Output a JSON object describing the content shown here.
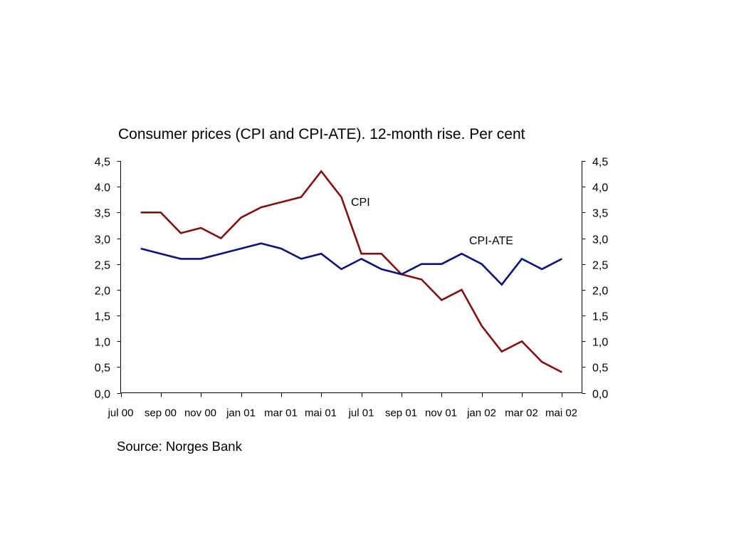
{
  "chart_data": {
    "type": "line",
    "title": "Consumer prices (CPI and CPI-ATE). 12-month rise. Per cent",
    "xlim": [
      "2000-07",
      "2002-06"
    ],
    "ylim": [
      0,
      4.5
    ],
    "grid": false,
    "x_ticks": [
      {
        "x": "2000-07",
        "label": "jul 00"
      },
      {
        "x": "2000-09",
        "label": "sep 00"
      },
      {
        "x": "2000-11",
        "label": "nov 00"
      },
      {
        "x": "2001-01",
        "label": "jan 01"
      },
      {
        "x": "2001-03",
        "label": "mar 01"
      },
      {
        "x": "2001-05",
        "label": "mai 01"
      },
      {
        "x": "2001-07",
        "label": "jul 01"
      },
      {
        "x": "2001-09",
        "label": "sep 01"
      },
      {
        "x": "2001-11",
        "label": "nov 01"
      },
      {
        "x": "2002-01",
        "label": "jan 02"
      },
      {
        "x": "2002-03",
        "label": "mar 02"
      },
      {
        "x": "2002-05",
        "label": "mai 02"
      }
    ],
    "y_ticks_left": [
      {
        "y": 0,
        "label": "0,0"
      },
      {
        "y": 0.5,
        "label": "0,5"
      },
      {
        "y": 1,
        "label": "1,0"
      },
      {
        "y": 1.5,
        "label": "1,5"
      },
      {
        "y": 2,
        "label": "2,0"
      },
      {
        "y": 2.5,
        "label": "2,5"
      },
      {
        "y": 3,
        "label": "3,0"
      },
      {
        "y": 3.5,
        "label": "3,5"
      },
      {
        "y": 4,
        "label": "4.0"
      },
      {
        "y": 4.5,
        "label": "4,5"
      }
    ],
    "y_ticks_right": [
      {
        "y": 0,
        "label": "0,0"
      },
      {
        "y": 0.5,
        "label": "0,5"
      },
      {
        "y": 1,
        "label": "1,0"
      },
      {
        "y": 1.5,
        "label": "1,5"
      },
      {
        "y": 2,
        "label": "2,0"
      },
      {
        "y": 2.5,
        "label": "2,5"
      },
      {
        "y": 3,
        "label": "3,0"
      },
      {
        "y": 3.5,
        "label": "3,5"
      },
      {
        "y": 4,
        "label": "4,0"
      },
      {
        "y": 4.5,
        "label": "4,5"
      }
    ],
    "x": [
      "2000-08",
      "2000-09",
      "2000-10",
      "2000-11",
      "2000-12",
      "2001-01",
      "2001-02",
      "2001-03",
      "2001-04",
      "2001-05",
      "2001-06",
      "2001-07",
      "2001-08",
      "2001-09",
      "2001-10",
      "2001-11",
      "2001-12",
      "2002-01",
      "2002-02",
      "2002-03",
      "2002-04",
      "2002-05"
    ],
    "series": [
      {
        "name": "CPI",
        "color": "#801010",
        "values": [
          3.5,
          3.5,
          3.1,
          3.2,
          3.0,
          3.4,
          3.6,
          3.7,
          3.8,
          4.3,
          3.8,
          2.7,
          2.7,
          2.3,
          2.2,
          1.8,
          2.0,
          1.3,
          0.8,
          1.0,
          0.6,
          0.4
        ]
      },
      {
        "name": "CPI-ATE",
        "color": "#0a1478",
        "values": [
          2.8,
          2.7,
          2.6,
          2.6,
          2.7,
          2.8,
          2.9,
          2.8,
          2.6,
          2.7,
          2.4,
          2.6,
          2.4,
          2.3,
          2.5,
          2.5,
          2.7,
          2.5,
          2.1,
          2.6,
          2.4,
          2.6
        ]
      }
    ],
    "source": "Source: Norges Bank"
  }
}
